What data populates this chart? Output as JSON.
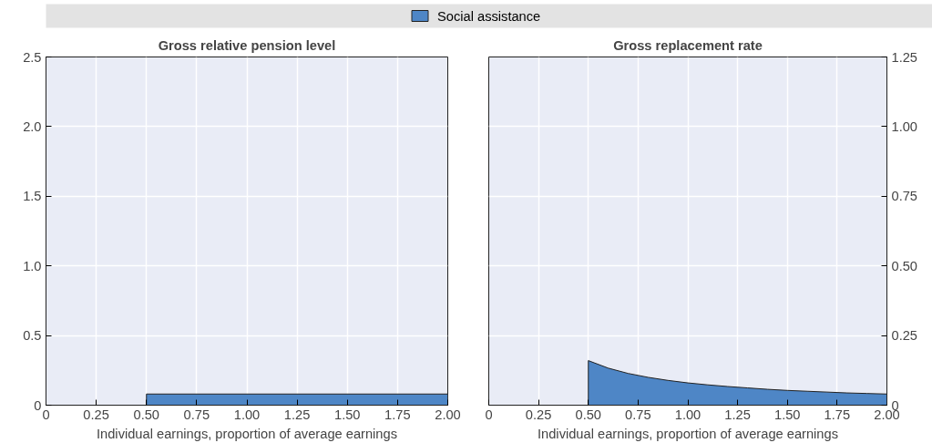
{
  "chart_data": [
    {
      "type": "area",
      "title": "Gross relative pension level",
      "xlabel": "Individual earnings, proportion of average earnings",
      "series": [
        {
          "name": "Social assistance",
          "color": "#4e86c6",
          "x": [
            0.5,
            2.0
          ],
          "values": [
            0.08,
            0.08
          ]
        }
      ],
      "xlim": [
        0,
        2
      ],
      "ylim": [
        0,
        2.5
      ],
      "xticks": [
        0,
        0.25,
        {
          "value": 0.5,
          "label": "0.50"
        },
        0.75,
        {
          "value": 1,
          "label": "1.00"
        },
        1.25,
        {
          "value": 1.5,
          "label": "1.50"
        },
        1.75,
        {
          "value": 2,
          "label": "2.00"
        }
      ],
      "yticks": [
        0,
        0.5,
        {
          "value": 1,
          "label": "1.0"
        },
        1.5,
        {
          "value": 2,
          "label": "2.0"
        },
        2.5
      ],
      "grid": true,
      "legend": "top"
    },
    {
      "type": "area",
      "title": "Gross replacement rate",
      "xlabel": "Individual earnings, proportion of average earnings",
      "series": [
        {
          "color": "#4e86c6",
          "x": [
            0.5,
            0.6,
            0.7,
            0.8,
            0.9,
            1.0,
            1.1,
            1.2,
            1.3,
            1.4,
            1.5,
            1.6,
            1.7,
            1.8,
            1.9,
            2.0
          ],
          "values": [
            0.16,
            0.133,
            0.114,
            0.1,
            0.089,
            0.08,
            0.073,
            0.067,
            0.062,
            0.057,
            0.053,
            0.05,
            0.047,
            0.044,
            0.042,
            0.04
          ],
          "axis": "y2"
        }
      ],
      "xlim": [
        0,
        2
      ],
      "y2lim": [
        0,
        1.25
      ],
      "xticks": [
        0,
        0.25,
        {
          "value": 0.5,
          "label": "0.50"
        },
        0.75,
        {
          "value": 1,
          "label": "1.00"
        },
        1.25,
        {
          "value": 1.5,
          "label": "1.50"
        },
        1.75,
        {
          "value": 2,
          "label": "2.00"
        }
      ],
      "y2ticks": [
        0,
        0.25,
        {
          "value": 0.5,
          "label": "0.50"
        },
        0.75,
        {
          "value": 1,
          "label": "1.00"
        },
        1.25
      ],
      "grid": true
    }
  ]
}
